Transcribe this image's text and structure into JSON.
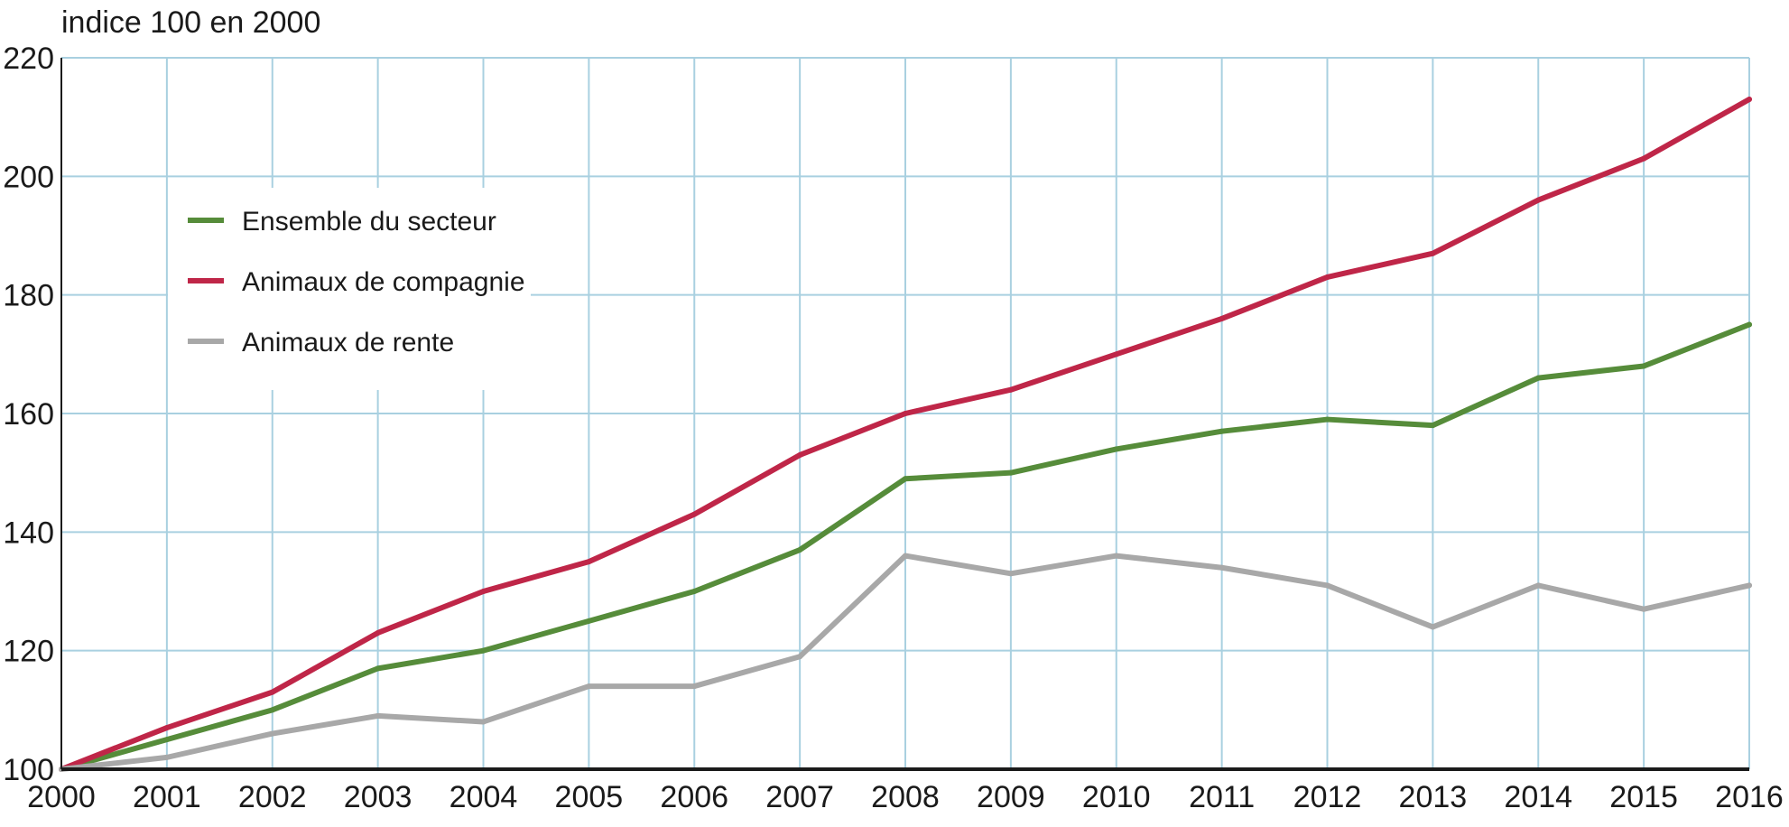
{
  "chart_data": {
    "type": "line",
    "ylabel": "indice 100  en 2000",
    "xlim": [
      2000,
      2016
    ],
    "ylim": [
      100,
      220
    ],
    "y_ticks": [
      100,
      120,
      140,
      160,
      180,
      200,
      220
    ],
    "x": [
      2000,
      2001,
      2002,
      2003,
      2004,
      2005,
      2006,
      2007,
      2008,
      2009,
      2010,
      2011,
      2012,
      2013,
      2014,
      2015,
      2016
    ],
    "grid": true,
    "legend_position": "top-left",
    "series": [
      {
        "name": "Ensemble du secteur",
        "color": "#568c3a",
        "values": [
          100,
          105,
          110,
          117,
          120,
          125,
          130,
          137,
          149,
          150,
          154,
          157,
          159,
          158,
          166,
          168,
          175
        ]
      },
      {
        "name": "Animaux de compagnie",
        "color": "#bf2648",
        "values": [
          100,
          107,
          113,
          123,
          130,
          135,
          143,
          153,
          160,
          164,
          170,
          176,
          183,
          187,
          196,
          203,
          213
        ]
      },
      {
        "name": "Animaux de rente",
        "color": "#a8a8a8",
        "values": [
          100,
          102,
          106,
          109,
          108,
          114,
          114,
          119,
          136,
          133,
          136,
          134,
          131,
          124,
          131,
          127,
          131
        ]
      }
    ]
  }
}
